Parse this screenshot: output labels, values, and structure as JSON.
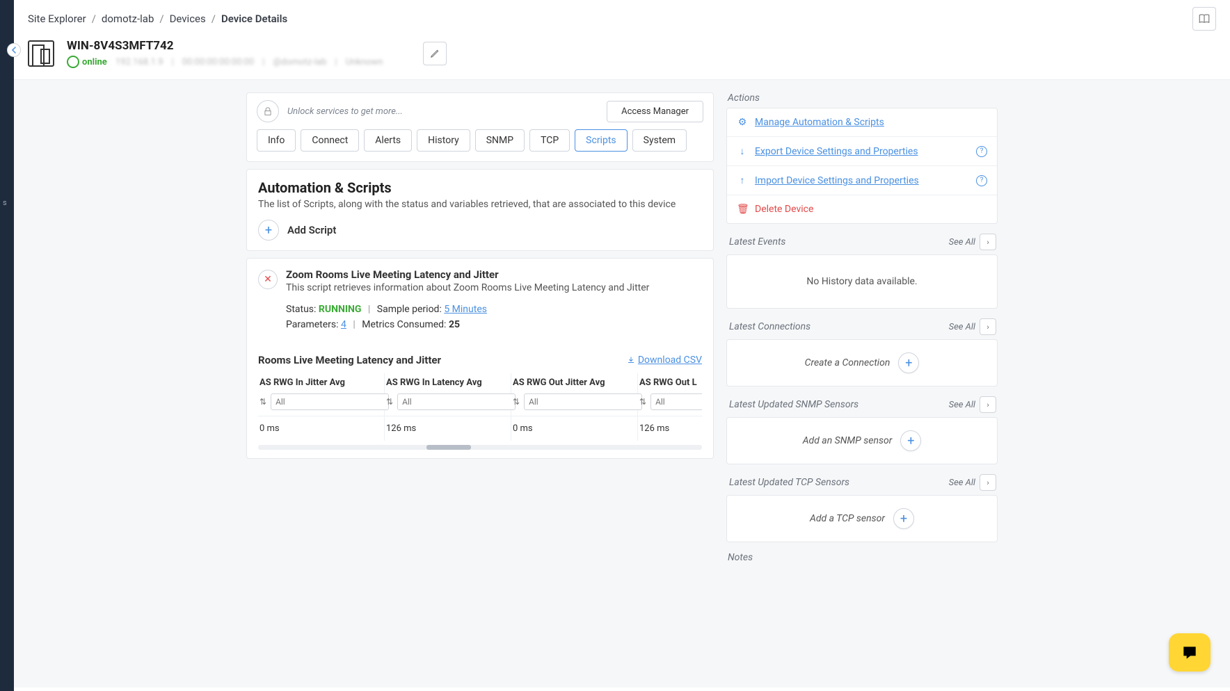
{
  "breadcrumb": {
    "site_explorer": "Site Explorer",
    "lab": "domotz-lab",
    "devices": "Devices",
    "current": "Device Details"
  },
  "device": {
    "name": "WIN-8V4S3MFT742",
    "status": "online",
    "ip_blurred": "192.168.1.9",
    "mac_blurred": "00:00:00:00:00:00",
    "site_blurred": "@domotz-lab",
    "unknown_blurred": "Unknown"
  },
  "lockbar": {
    "text": "Unlock services to get more...",
    "button": "Access Manager"
  },
  "tabs": {
    "info": "Info",
    "connect": "Connect",
    "alerts": "Alerts",
    "history": "History",
    "snmp": "SNMP",
    "tcp": "TCP",
    "scripts": "Scripts",
    "system": "System",
    "active": "scripts"
  },
  "automation": {
    "title": "Automation & Scripts",
    "subtitle": "The list of Scripts, along with the status and variables retrieved, that are associated to this device",
    "add_label": "Add Script"
  },
  "script": {
    "name": "Zoom Rooms Live Meeting Latency and Jitter",
    "desc": "This script retrieves information about Zoom Rooms Live Meeting Latency and Jitter",
    "status_label": "Status:",
    "status_value": "RUNNING",
    "sample_label": "Sample period:",
    "sample_value": "5 Minutes",
    "params_label": "Parameters:",
    "params_value": "4",
    "metrics_label": "Metrics Consumed:",
    "metrics_value": "25"
  },
  "table": {
    "title": "Rooms Live Meeting Latency and Jitter",
    "download": "Download CSV",
    "filter_placeholder": "All",
    "columns": [
      "AS RWG In Jitter Avg",
      "AS RWG In Latency Avg",
      "AS RWG Out Jitter Avg",
      "AS RWG Out L"
    ],
    "row": [
      "0 ms",
      "126 ms",
      "0 ms",
      "126 ms"
    ]
  },
  "actions": {
    "title": "Actions",
    "manage": "Manage Automation & Scripts",
    "export": "Export Device Settings and Properties",
    "import": "Import Device Settings and Properties",
    "delete": "Delete Device"
  },
  "side": {
    "see_all": "See All",
    "events_title": "Latest Events",
    "events_empty": "No History data available.",
    "connections_title": "Latest Connections",
    "create_connection": "Create a Connection",
    "snmp_title": "Latest Updated SNMP Sensors",
    "add_snmp": "Add an SNMP sensor",
    "tcp_title": "Latest Updated TCP Sensors",
    "add_tcp": "Add a TCP sensor",
    "notes_title": "Notes"
  }
}
